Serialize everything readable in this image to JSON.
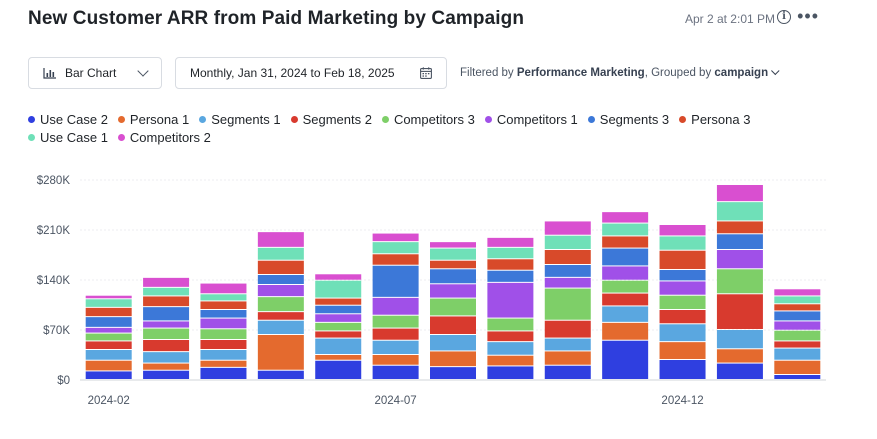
{
  "header": {
    "title": "New Customer ARR from Paid Marketing by Campaign",
    "timestamp": "Apr 2 at 2:01 PM"
  },
  "controls": {
    "chart_type": "Bar Chart",
    "date_range": "Monthly, Jan 31, 2024 to Feb 18, 2025",
    "filter_prefix": "Filtered by",
    "filter_value": "Performance Marketing",
    "group_prefix": ", Grouped by",
    "group_value": "campaign"
  },
  "icons": {
    "chart_type": "bar-chart-icon",
    "calendar": "calendar-icon",
    "info": "info-icon",
    "more": "more-icon"
  },
  "chart_data": {
    "type": "bar",
    "stacked": true,
    "x_tick_labels": [
      "2024-02",
      "2024-07",
      "2024-12"
    ],
    "y_ticks": [
      "$0",
      "$70K",
      "$140K",
      "$210K",
      "$280K"
    ],
    "ylim": [
      0,
      280000
    ],
    "grid": true,
    "legend_position": "top",
    "series": [
      {
        "name": "Use Case 2",
        "color": "#2f3fe0",
        "values": [
          12000,
          13000,
          17000,
          13000,
          27000,
          20000,
          18000,
          19000,
          20000,
          55000,
          28000,
          23000,
          7000
        ]
      },
      {
        "name": "Persona 1",
        "color": "#e46a2e",
        "values": [
          15000,
          10000,
          10000,
          50000,
          8000,
          15000,
          22000,
          15000,
          20000,
          25000,
          25000,
          20000,
          20000
        ]
      },
      {
        "name": "Segments 1",
        "color": "#5aa7e0",
        "values": [
          15000,
          16000,
          15000,
          20000,
          23000,
          20000,
          23000,
          19000,
          18000,
          23000,
          25000,
          27000,
          17000
        ]
      },
      {
        "name": "Segments 2",
        "color": "#d83a2e",
        "values": [
          12000,
          17000,
          14000,
          12000,
          10000,
          17000,
          26000,
          15000,
          25000,
          18000,
          20000,
          50000,
          10000
        ]
      },
      {
        "name": "Competitors 3",
        "color": "#7ecf68",
        "values": [
          11000,
          16000,
          15000,
          21000,
          12000,
          18000,
          25000,
          18000,
          45000,
          18000,
          20000,
          35000,
          15000
        ]
      },
      {
        "name": "Competitors 1",
        "color": "#a050e8",
        "values": [
          8000,
          10000,
          15000,
          17000,
          12000,
          25000,
          20000,
          50000,
          15000,
          20000,
          20000,
          27000,
          13000
        ]
      },
      {
        "name": "Segments 3",
        "color": "#3c78d8",
        "values": [
          15000,
          20000,
          12000,
          14000,
          12000,
          45000,
          21000,
          17000,
          18000,
          25000,
          16000,
          22000,
          14000
        ]
      },
      {
        "name": "Persona 3",
        "color": "#d84a2a",
        "values": [
          13000,
          15000,
          12000,
          20000,
          10000,
          16000,
          12000,
          16000,
          21000,
          17000,
          27000,
          18000,
          10000
        ]
      },
      {
        "name": "Use Case 1",
        "color": "#6fe0b8",
        "values": [
          12000,
          12000,
          10000,
          18000,
          25000,
          17000,
          17000,
          16000,
          20000,
          18000,
          20000,
          27000,
          11000
        ]
      },
      {
        "name": "Competitors 2",
        "color": "#d94fd0",
        "values": [
          5000,
          14000,
          15000,
          22000,
          9000,
          12000,
          9000,
          14000,
          20000,
          16000,
          16000,
          24000,
          10000
        ]
      }
    ]
  }
}
